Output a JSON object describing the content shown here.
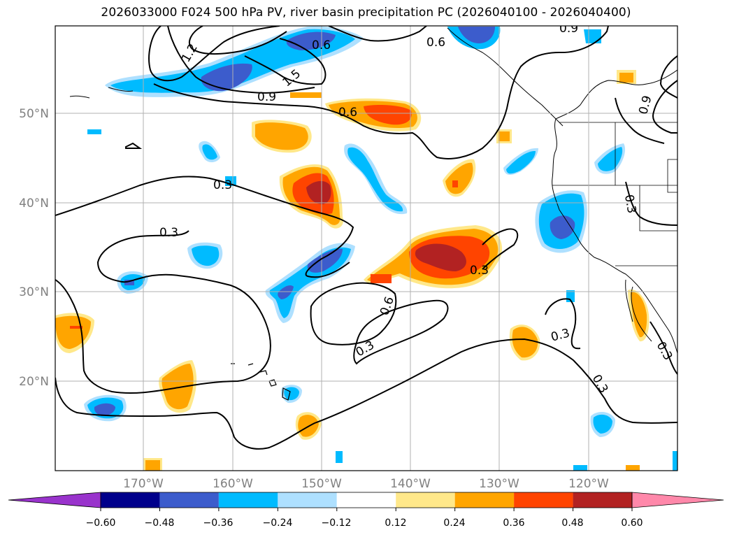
{
  "title": "2026033000 F024 500 hPa PV, river basin precipitation PC (2026040100 - 2026040400)",
  "lat_labels": [
    "50°N",
    "40°N",
    "30°N",
    "20°N"
  ],
  "lon_labels": [
    "170°W",
    "160°W",
    "150°W",
    "140°W",
    "130°W",
    "120°W"
  ],
  "contour_labels": [
    "1.2",
    "1.5",
    "0.9",
    "0.6",
    "0.6",
    "0.9",
    "0.6",
    "0.9",
    "0.3",
    "0.3",
    "0.3",
    "0.3",
    "0.6",
    "0.3",
    "0.3",
    "0.3",
    "0.3"
  ],
  "colorbar": {
    "ticks": [
      "−0.60",
      "−0.48",
      "−0.36",
      "−0.24",
      "−0.12",
      "0.12",
      "0.24",
      "0.36",
      "0.48",
      "0.60"
    ],
    "colors": [
      "#9933cc",
      "#00008b",
      "#3c5ccc",
      "#00bbff",
      "#aee0ff",
      "#ffffff",
      "#ffe88a",
      "#ffa500",
      "#ff4400",
      "#b22222",
      "#ff88aa"
    ]
  },
  "palette": {
    "neg_weak": "#aee0ff",
    "neg_mid": "#00bbff",
    "neg_strong": "#3c5ccc",
    "pos_weak": "#ffe88a",
    "pos_mid": "#ffa500",
    "pos_strong": "#ff4400",
    "pos_max": "#b22222"
  }
}
